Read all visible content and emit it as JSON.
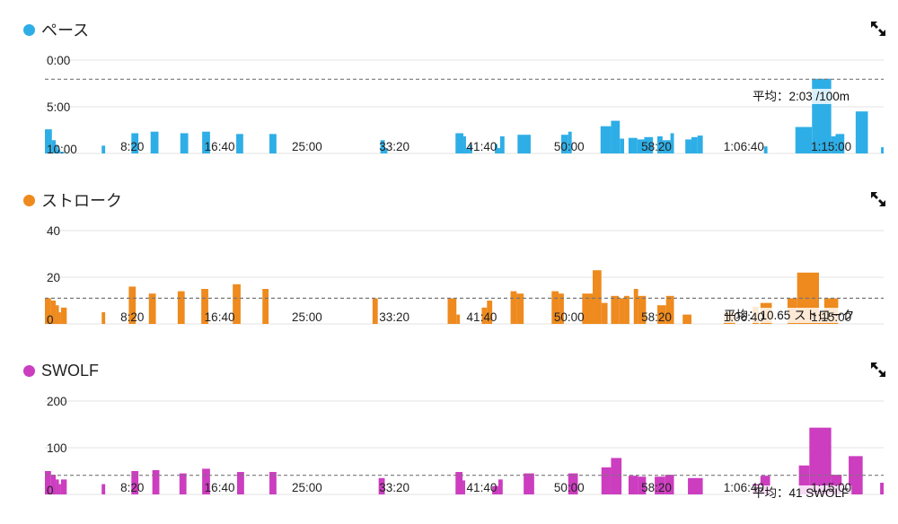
{
  "chart_data": [
    {
      "type": "bar",
      "title": "ペース",
      "color": "#2eaee6",
      "y_reversed": true,
      "ylim": [
        0,
        600
      ],
      "y_ticks": [
        {
          "value": 0,
          "label": "0:00"
        },
        {
          "value": 300,
          "label": "5:00"
        },
        {
          "value": 600,
          "label": "10:00"
        }
      ],
      "x_range": [
        0,
        4800
      ],
      "x_ticks": [
        {
          "value": 500,
          "label": "8:20"
        },
        {
          "value": 1000,
          "label": "16:40"
        },
        {
          "value": 1500,
          "label": "25:00"
        },
        {
          "value": 2000,
          "label": "33:20"
        },
        {
          "value": 2500,
          "label": "41:40"
        },
        {
          "value": 3000,
          "label": "50:00"
        },
        {
          "value": 3500,
          "label": "58:20"
        },
        {
          "value": 4000,
          "label": "1:06:40"
        },
        {
          "value": 4500,
          "label": "1:15:00"
        }
      ],
      "average": {
        "value": 123,
        "label": "平均：2:03 /100m"
      },
      "bars": [
        {
          "x0": 0,
          "x1": 40,
          "y": 445
        },
        {
          "x0": 40,
          "x1": 62,
          "y": 515
        },
        {
          "x0": 62,
          "x1": 75,
          "y": 550
        },
        {
          "x0": 75,
          "x1": 88,
          "y": 575
        },
        {
          "x0": 88,
          "x1": 112,
          "y": 590
        },
        {
          "x0": 325,
          "x1": 345,
          "y": 550
        },
        {
          "x0": 495,
          "x1": 535,
          "y": 470
        },
        {
          "x0": 605,
          "x1": 650,
          "y": 460
        },
        {
          "x0": 775,
          "x1": 820,
          "y": 470
        },
        {
          "x0": 900,
          "x1": 945,
          "y": 460
        },
        {
          "x0": 1095,
          "x1": 1135,
          "y": 475
        },
        {
          "x0": 1285,
          "x1": 1325,
          "y": 475
        },
        {
          "x0": 1920,
          "x1": 1945,
          "y": 515
        },
        {
          "x0": 1945,
          "x1": 1960,
          "y": 565
        },
        {
          "x0": 2350,
          "x1": 2395,
          "y": 470
        },
        {
          "x0": 2395,
          "x1": 2410,
          "y": 490
        },
        {
          "x0": 2410,
          "x1": 2430,
          "y": 565
        },
        {
          "x0": 2430,
          "x1": 2445,
          "y": 545
        },
        {
          "x0": 2575,
          "x1": 2590,
          "y": 540
        },
        {
          "x0": 2590,
          "x1": 2605,
          "y": 565
        },
        {
          "x0": 2605,
          "x1": 2630,
          "y": 490
        },
        {
          "x0": 2705,
          "x1": 2780,
          "y": 480
        },
        {
          "x0": 2955,
          "x1": 2995,
          "y": 480
        },
        {
          "x0": 2995,
          "x1": 3015,
          "y": 460
        },
        {
          "x0": 3180,
          "x1": 3240,
          "y": 425
        },
        {
          "x0": 3240,
          "x1": 3290,
          "y": 390
        },
        {
          "x0": 3290,
          "x1": 3315,
          "y": 505
        },
        {
          "x0": 3340,
          "x1": 3390,
          "y": 500
        },
        {
          "x0": 3390,
          "x1": 3430,
          "y": 510
        },
        {
          "x0": 3430,
          "x1": 3480,
          "y": 495
        },
        {
          "x0": 3505,
          "x1": 3535,
          "y": 490
        },
        {
          "x0": 3535,
          "x1": 3580,
          "y": 515
        },
        {
          "x0": 3580,
          "x1": 3600,
          "y": 470
        },
        {
          "x0": 3665,
          "x1": 3700,
          "y": 510
        },
        {
          "x0": 3700,
          "x1": 3735,
          "y": 495
        },
        {
          "x0": 3735,
          "x1": 3765,
          "y": 485
        },
        {
          "x0": 4115,
          "x1": 4135,
          "y": 555
        },
        {
          "x0": 4295,
          "x1": 4390,
          "y": 430
        },
        {
          "x0": 4390,
          "x1": 4500,
          "y": 120
        },
        {
          "x0": 4500,
          "x1": 4525,
          "y": 490
        },
        {
          "x0": 4525,
          "x1": 4575,
          "y": 475
        },
        {
          "x0": 4640,
          "x1": 4710,
          "y": 330
        },
        {
          "x0": 4785,
          "x1": 4800,
          "y": 560
        }
      ]
    },
    {
      "type": "bar",
      "title": "ストローク",
      "color": "#ee8a1e",
      "y_reversed": false,
      "ylim": [
        0,
        40
      ],
      "y_ticks": [
        {
          "value": 0,
          "label": "0"
        },
        {
          "value": 20,
          "label": "20"
        },
        {
          "value": 40,
          "label": "40"
        }
      ],
      "x_range": [
        0,
        4800
      ],
      "x_ticks": [
        {
          "value": 500,
          "label": "8:20"
        },
        {
          "value": 1000,
          "label": "16:40"
        },
        {
          "value": 1500,
          "label": "25:00"
        },
        {
          "value": 2000,
          "label": "33:20"
        },
        {
          "value": 2500,
          "label": "41:40"
        },
        {
          "value": 3000,
          "label": "50:00"
        },
        {
          "value": 3500,
          "label": "58:20"
        },
        {
          "value": 4000,
          "label": "1:06:40"
        },
        {
          "value": 4500,
          "label": "1:15:00"
        }
      ],
      "average": {
        "value": 11,
        "label": "平均：10.65 ストローク"
      },
      "bars": [
        {
          "x0": 0,
          "x1": 35,
          "y": 11
        },
        {
          "x0": 35,
          "x1": 62,
          "y": 10
        },
        {
          "x0": 62,
          "x1": 80,
          "y": 8
        },
        {
          "x0": 80,
          "x1": 92,
          "y": 5
        },
        {
          "x0": 92,
          "x1": 125,
          "y": 7
        },
        {
          "x0": 325,
          "x1": 345,
          "y": 5
        },
        {
          "x0": 480,
          "x1": 520,
          "y": 16
        },
        {
          "x0": 595,
          "x1": 635,
          "y": 13
        },
        {
          "x0": 760,
          "x1": 800,
          "y": 14
        },
        {
          "x0": 895,
          "x1": 935,
          "y": 15
        },
        {
          "x0": 1075,
          "x1": 1120,
          "y": 17
        },
        {
          "x0": 1245,
          "x1": 1280,
          "y": 15
        },
        {
          "x0": 1875,
          "x1": 1905,
          "y": 11
        },
        {
          "x0": 2305,
          "x1": 2355,
          "y": 11
        },
        {
          "x0": 2355,
          "x1": 2375,
          "y": 4
        },
        {
          "x0": 2500,
          "x1": 2530,
          "y": 7
        },
        {
          "x0": 2530,
          "x1": 2560,
          "y": 10
        },
        {
          "x0": 2665,
          "x1": 2700,
          "y": 14
        },
        {
          "x0": 2700,
          "x1": 2740,
          "y": 13
        },
        {
          "x0": 2900,
          "x1": 2940,
          "y": 14
        },
        {
          "x0": 2940,
          "x1": 2970,
          "y": 13
        },
        {
          "x0": 3075,
          "x1": 3135,
          "y": 13
        },
        {
          "x0": 3135,
          "x1": 3185,
          "y": 23
        },
        {
          "x0": 3185,
          "x1": 3220,
          "y": 9
        },
        {
          "x0": 3240,
          "x1": 3285,
          "y": 12
        },
        {
          "x0": 3285,
          "x1": 3315,
          "y": 11
        },
        {
          "x0": 3315,
          "x1": 3345,
          "y": 12
        },
        {
          "x0": 3370,
          "x1": 3395,
          "y": 15
        },
        {
          "x0": 3395,
          "x1": 3440,
          "y": 12
        },
        {
          "x0": 3505,
          "x1": 3555,
          "y": 8
        },
        {
          "x0": 3555,
          "x1": 3600,
          "y": 12
        },
        {
          "x0": 3650,
          "x1": 3700,
          "y": 4
        },
        {
          "x0": 3885,
          "x1": 3950,
          "y": 5
        },
        {
          "x0": 4050,
          "x1": 4085,
          "y": 7
        },
        {
          "x0": 4095,
          "x1": 4160,
          "y": 9
        },
        {
          "x0": 4250,
          "x1": 4305,
          "y": 11
        },
        {
          "x0": 4305,
          "x1": 4430,
          "y": 22
        },
        {
          "x0": 4430,
          "x1": 4460,
          "y": 5
        },
        {
          "x0": 4460,
          "x1": 4540,
          "y": 11
        }
      ]
    },
    {
      "type": "bar",
      "title": "SWOLF",
      "color": "#cc3dbf",
      "y_reversed": false,
      "ylim": [
        0,
        200
      ],
      "y_ticks": [
        {
          "value": 0,
          "label": "0"
        },
        {
          "value": 100,
          "label": "100"
        },
        {
          "value": 200,
          "label": "200"
        }
      ],
      "x_range": [
        0,
        4800
      ],
      "x_ticks": [
        {
          "value": 500,
          "label": "8:20"
        },
        {
          "value": 1000,
          "label": "16:40"
        },
        {
          "value": 1500,
          "label": "25:00"
        },
        {
          "value": 2000,
          "label": "33:20"
        },
        {
          "value": 2500,
          "label": "41:40"
        },
        {
          "value": 3000,
          "label": "50:00"
        },
        {
          "value": 3500,
          "label": "58:20"
        },
        {
          "value": 4000,
          "label": "1:06:40"
        },
        {
          "value": 4500,
          "label": "1:15:00"
        }
      ],
      "average": {
        "value": 41,
        "label": "平均：41 SWOLF"
      },
      "bars": [
        {
          "x0": 0,
          "x1": 35,
          "y": 50
        },
        {
          "x0": 35,
          "x1": 62,
          "y": 42
        },
        {
          "x0": 62,
          "x1": 80,
          "y": 32
        },
        {
          "x0": 80,
          "x1": 92,
          "y": 22
        },
        {
          "x0": 92,
          "x1": 125,
          "y": 32
        },
        {
          "x0": 325,
          "x1": 345,
          "y": 22
        },
        {
          "x0": 495,
          "x1": 535,
          "y": 50
        },
        {
          "x0": 615,
          "x1": 655,
          "y": 52
        },
        {
          "x0": 770,
          "x1": 810,
          "y": 45
        },
        {
          "x0": 900,
          "x1": 945,
          "y": 55
        },
        {
          "x0": 1100,
          "x1": 1140,
          "y": 48
        },
        {
          "x0": 1285,
          "x1": 1325,
          "y": 48
        },
        {
          "x0": 1910,
          "x1": 1945,
          "y": 35
        },
        {
          "x0": 2350,
          "x1": 2390,
          "y": 48
        },
        {
          "x0": 2390,
          "x1": 2405,
          "y": 30
        },
        {
          "x0": 2560,
          "x1": 2595,
          "y": 18
        },
        {
          "x0": 2595,
          "x1": 2620,
          "y": 32
        },
        {
          "x0": 2740,
          "x1": 2800,
          "y": 45
        },
        {
          "x0": 2995,
          "x1": 3050,
          "y": 45
        },
        {
          "x0": 3185,
          "x1": 3240,
          "y": 58
        },
        {
          "x0": 3240,
          "x1": 3300,
          "y": 78
        },
        {
          "x0": 3340,
          "x1": 3395,
          "y": 40
        },
        {
          "x0": 3395,
          "x1": 3440,
          "y": 38
        },
        {
          "x0": 3490,
          "x1": 3550,
          "y": 38
        },
        {
          "x0": 3550,
          "x1": 3600,
          "y": 42
        },
        {
          "x0": 3680,
          "x1": 3765,
          "y": 35
        },
        {
          "x0": 4050,
          "x1": 4090,
          "y": 22
        },
        {
          "x0": 4095,
          "x1": 4150,
          "y": 40
        },
        {
          "x0": 4315,
          "x1": 4375,
          "y": 62
        },
        {
          "x0": 4375,
          "x1": 4500,
          "y": 143
        },
        {
          "x0": 4500,
          "x1": 4560,
          "y": 42
        },
        {
          "x0": 4600,
          "x1": 4680,
          "y": 82
        },
        {
          "x0": 4780,
          "x1": 4800,
          "y": 25
        }
      ]
    }
  ]
}
